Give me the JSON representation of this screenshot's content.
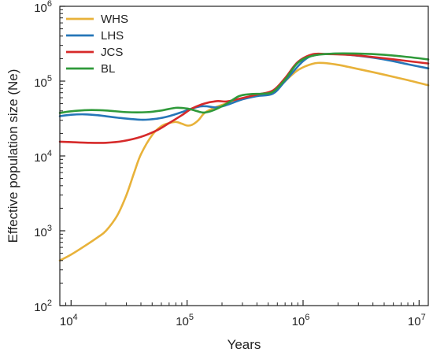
{
  "chart_data": {
    "type": "line",
    "title": "",
    "xlabel": "Years",
    "ylabel": "Effective population size (Ne)",
    "x_scale": "log",
    "y_scale": "log",
    "xlim": [
      8000,
      12000000
    ],
    "ylim": [
      100,
      1000000
    ],
    "x_ticks": [
      {
        "value": 10000,
        "base": "10",
        "exp": "4"
      },
      {
        "value": 100000,
        "base": "10",
        "exp": "5"
      },
      {
        "value": 1000000,
        "base": "10",
        "exp": "6"
      },
      {
        "value": 10000000,
        "base": "10",
        "exp": "7"
      }
    ],
    "y_ticks": [
      {
        "value": 100,
        "base": "10",
        "exp": "2"
      },
      {
        "value": 1000,
        "base": "10",
        "exp": "3"
      },
      {
        "value": 10000,
        "base": "10",
        "exp": "4"
      },
      {
        "value": 100000,
        "base": "10",
        "exp": "5"
      },
      {
        "value": 1000000,
        "base": "10",
        "exp": "6"
      }
    ],
    "grid": false,
    "legend_position": "top-left",
    "series": [
      {
        "name": "WHS",
        "color": "#e8b23a",
        "points": [
          [
            8000,
            400
          ],
          [
            10000,
            480
          ],
          [
            13000,
            620
          ],
          [
            17000,
            820
          ],
          [
            20000,
            1000
          ],
          [
            25000,
            1600
          ],
          [
            30000,
            3000
          ],
          [
            35000,
            6000
          ],
          [
            40000,
            10500
          ],
          [
            50000,
            19000
          ],
          [
            60000,
            25000
          ],
          [
            70000,
            27500
          ],
          [
            80000,
            28500
          ],
          [
            90000,
            27000
          ],
          [
            100000,
            25500
          ],
          [
            110000,
            26000
          ],
          [
            125000,
            30000
          ],
          [
            140000,
            37000
          ],
          [
            160000,
            42000
          ],
          [
            200000,
            48000
          ],
          [
            300000,
            58000
          ],
          [
            400000,
            65000
          ],
          [
            550000,
            72000
          ],
          [
            700000,
            100000
          ],
          [
            900000,
            140000
          ],
          [
            1200000,
            170000
          ],
          [
            1500000,
            175000
          ],
          [
            2000000,
            165000
          ],
          [
            3000000,
            145000
          ],
          [
            5000000,
            122000
          ],
          [
            8000000,
            103000
          ],
          [
            12000000,
            88000
          ]
        ]
      },
      {
        "name": "LHS",
        "color": "#2676b8",
        "points": [
          [
            8000,
            34000
          ],
          [
            10000,
            35500
          ],
          [
            13000,
            36000
          ],
          [
            17000,
            35000
          ],
          [
            25000,
            32500
          ],
          [
            40000,
            30500
          ],
          [
            55000,
            31500
          ],
          [
            70000,
            34000
          ],
          [
            90000,
            38500
          ],
          [
            110000,
            43000
          ],
          [
            130000,
            46000
          ],
          [
            150000,
            46000
          ],
          [
            180000,
            44500
          ],
          [
            220000,
            48000
          ],
          [
            300000,
            57000
          ],
          [
            400000,
            63000
          ],
          [
            550000,
            68000
          ],
          [
            700000,
            100000
          ],
          [
            1000000,
            185000
          ],
          [
            1300000,
            225000
          ],
          [
            2000000,
            230000
          ],
          [
            3000000,
            218000
          ],
          [
            5000000,
            195000
          ],
          [
            8000000,
            168000
          ],
          [
            12000000,
            148000
          ]
        ]
      },
      {
        "name": "JCS",
        "color": "#d62a2a",
        "points": [
          [
            8000,
            15500
          ],
          [
            10000,
            15300
          ],
          [
            14000,
            15000
          ],
          [
            20000,
            15000
          ],
          [
            28000,
            15800
          ],
          [
            40000,
            18000
          ],
          [
            55000,
            22000
          ],
          [
            70000,
            27500
          ],
          [
            90000,
            35000
          ],
          [
            110000,
            43000
          ],
          [
            140000,
            50000
          ],
          [
            180000,
            54000
          ],
          [
            220000,
            53500
          ],
          [
            280000,
            58000
          ],
          [
            400000,
            66000
          ],
          [
            550000,
            75000
          ],
          [
            700000,
            110000
          ],
          [
            900000,
            180000
          ],
          [
            1200000,
            228000
          ],
          [
            1600000,
            230000
          ],
          [
            2500000,
            225000
          ],
          [
            4000000,
            210000
          ],
          [
            7000000,
            190000
          ],
          [
            12000000,
            172000
          ]
        ]
      },
      {
        "name": "BL",
        "color": "#2f9a3a",
        "points": [
          [
            8000,
            37500
          ],
          [
            10000,
            39500
          ],
          [
            14000,
            41000
          ],
          [
            20000,
            40500
          ],
          [
            30000,
            38500
          ],
          [
            45000,
            38500
          ],
          [
            60000,
            40500
          ],
          [
            80000,
            44000
          ],
          [
            100000,
            43000
          ],
          [
            120000,
            40000
          ],
          [
            140000,
            38000
          ],
          [
            170000,
            41000
          ],
          [
            220000,
            50000
          ],
          [
            280000,
            63000
          ],
          [
            350000,
            67000
          ],
          [
            450000,
            68000
          ],
          [
            550000,
            72000
          ],
          [
            700000,
            105000
          ],
          [
            900000,
            175000
          ],
          [
            1200000,
            218000
          ],
          [
            1800000,
            233000
          ],
          [
            3000000,
            233000
          ],
          [
            5000000,
            225000
          ],
          [
            8000000,
            210000
          ],
          [
            12000000,
            195000
          ]
        ]
      }
    ]
  }
}
